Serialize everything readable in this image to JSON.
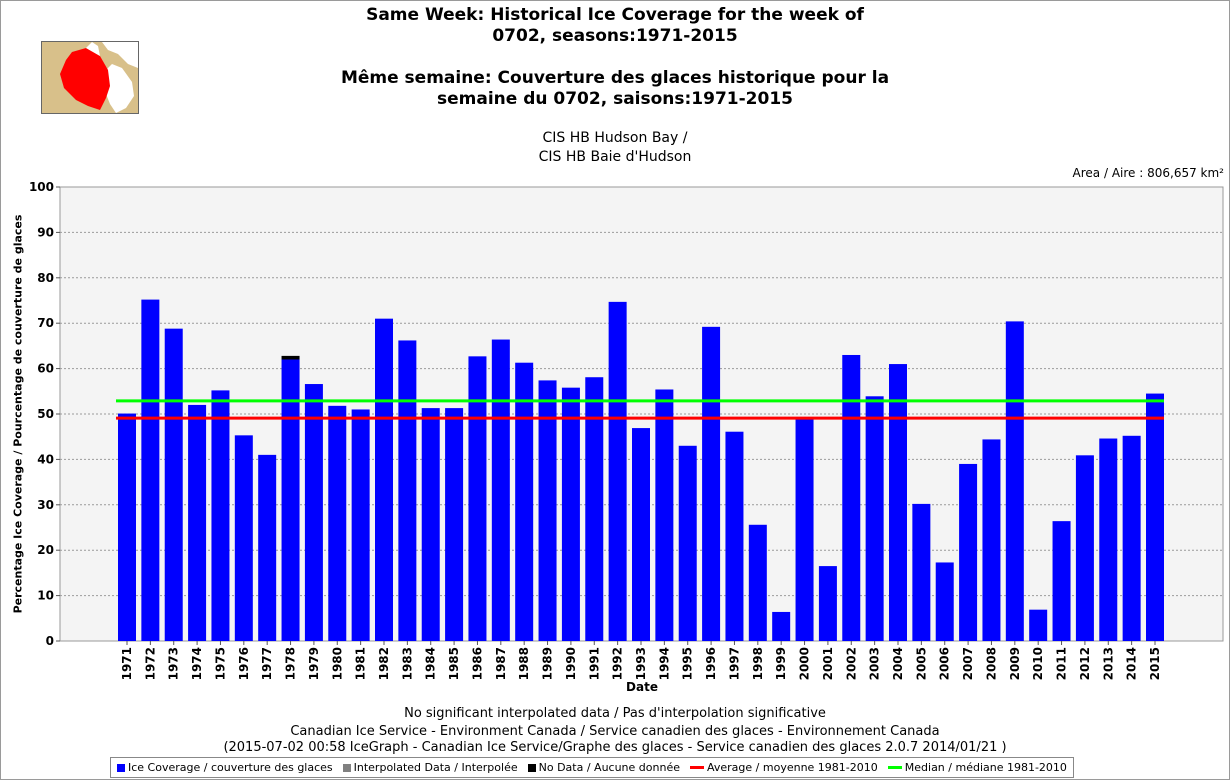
{
  "titles": {
    "en_line1": "Same Week: Historical Ice Coverage for the week of",
    "en_line2": "0702, seasons:1971-2015",
    "fr_line1": "Même semaine: Couverture des glaces historique pour la",
    "fr_line2": "semaine du 0702, saisons:1971-2015",
    "region_en": "CIS HB Hudson Bay /",
    "region_fr": "CIS HB Baie d'Hudson",
    "area": "Area / Aire : 806,657 km²"
  },
  "footer": {
    "line1": "No significant interpolated data / Pas d'interpolation significative",
    "line2": "Canadian Ice Service - Environment Canada / Service canadien des glaces - Environnement Canada",
    "line3": "(2015-07-02 00:58 IceGraph - Canadian Ice Service/Graphe des glaces - Service canadien des glaces 2.0.7 2014/01/21 )"
  },
  "legend": {
    "ice": "Ice Coverage / couverture des glaces",
    "interp": "Interpolated Data / Interpolée",
    "nodata": "No Data / Aucune donnée",
    "average": "Average / moyenne 1981-2010",
    "median": "Median / médiane 1981-2010"
  },
  "colors": {
    "ice": "#0000ff",
    "interp": "#808080",
    "nodata": "#000000",
    "average": "#ff0000",
    "median": "#00ff00",
    "plot_bg": "#f4f4f4",
    "map_region": "#ff0000"
  },
  "chart_data": {
    "type": "bar",
    "title": "Same Week: Historical Ice Coverage for the week of 0702, seasons:1971-2015",
    "xlabel": "Date",
    "ylabel": "Percentage Ice Coverage / Pourcentage de couverture de glaces",
    "ylim": [
      0,
      100
    ],
    "yticks": [
      0,
      10,
      20,
      30,
      40,
      50,
      60,
      70,
      80,
      90,
      100
    ],
    "grid": true,
    "legend_position": "bottom",
    "categories": [
      "1971",
      "1972",
      "1973",
      "1974",
      "1975",
      "1976",
      "1977",
      "1978",
      "1979",
      "1980",
      "1981",
      "1982",
      "1983",
      "1984",
      "1985",
      "1986",
      "1987",
      "1988",
      "1989",
      "1990",
      "1991",
      "1992",
      "1993",
      "1994",
      "1995",
      "1996",
      "1997",
      "1998",
      "1999",
      "2000",
      "2001",
      "2002",
      "2003",
      "2004",
      "2005",
      "2006",
      "2007",
      "2008",
      "2009",
      "2010",
      "2011",
      "2012",
      "2013",
      "2014",
      "2015"
    ],
    "series": [
      {
        "name": "Ice Coverage / couverture des glaces",
        "values": [
          50.1,
          75.2,
          68.8,
          52.0,
          55.2,
          45.3,
          41.0,
          62.0,
          56.6,
          51.8,
          51.0,
          71.0,
          66.2,
          51.3,
          51.3,
          62.7,
          66.4,
          61.3,
          57.4,
          55.8,
          58.1,
          74.7,
          46.9,
          55.4,
          43.0,
          69.2,
          46.1,
          25.6,
          6.4,
          48.8,
          16.5,
          63.0,
          53.9,
          61.0,
          30.2,
          17.3,
          39.0,
          44.4,
          70.4,
          6.9,
          26.4,
          40.9,
          44.6,
          45.2,
          54.5
        ]
      },
      {
        "name": "No Data / Aucune donnée",
        "values": [
          0,
          0,
          0,
          0,
          0,
          0,
          0,
          0.8,
          0,
          0,
          0,
          0,
          0,
          0,
          0,
          0,
          0,
          0,
          0,
          0,
          0,
          0,
          0,
          0,
          0,
          0,
          0,
          0,
          0,
          0,
          0,
          0,
          0,
          0,
          0,
          0,
          0,
          0,
          0,
          0,
          0,
          0,
          0,
          0,
          0
        ]
      }
    ],
    "reference_lines": [
      {
        "name": "Average / moyenne 1981-2010",
        "value": 49.1
      },
      {
        "name": "Median / médiane 1981-2010",
        "value": 52.9
      }
    ]
  }
}
